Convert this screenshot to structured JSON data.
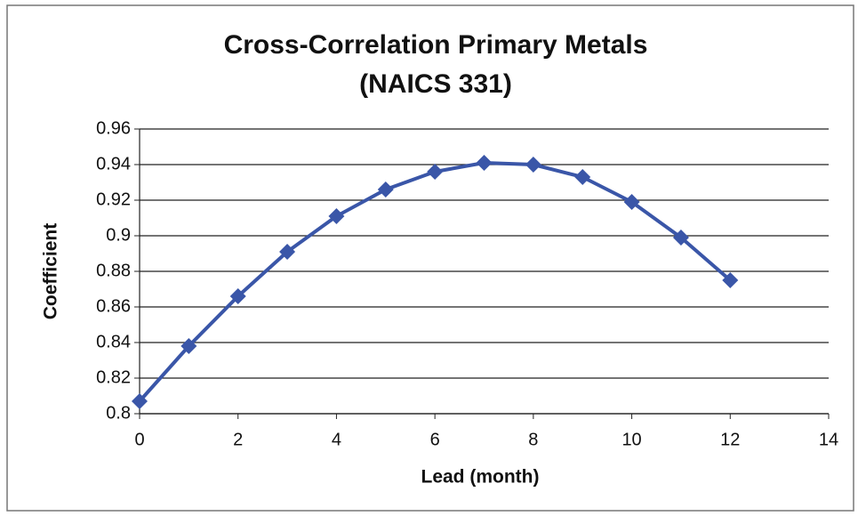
{
  "chart_data": {
    "type": "line",
    "title": [
      "Cross-Correlation Primary Metals",
      "(NAICS 331)"
    ],
    "x_label": "Lead (month)",
    "y_label": "Coefficient",
    "x": [
      0,
      1,
      2,
      3,
      4,
      5,
      6,
      7,
      8,
      9,
      10,
      11,
      12
    ],
    "series": [
      {
        "name": "Coefficient",
        "color": "#3a56a8",
        "values": [
          0.807,
          0.838,
          0.866,
          0.891,
          0.911,
          0.926,
          0.936,
          0.941,
          0.94,
          0.933,
          0.919,
          0.899,
          0.875
        ]
      }
    ],
    "xlim": [
      0,
      14
    ],
    "xticks": [
      0,
      2,
      4,
      6,
      8,
      10,
      12,
      14
    ],
    "ylim": [
      0.8,
      0.96
    ],
    "yticks": [
      0.8,
      0.82,
      0.84,
      0.86,
      0.88,
      0.9,
      0.92,
      0.94,
      0.96
    ],
    "grid": true
  }
}
